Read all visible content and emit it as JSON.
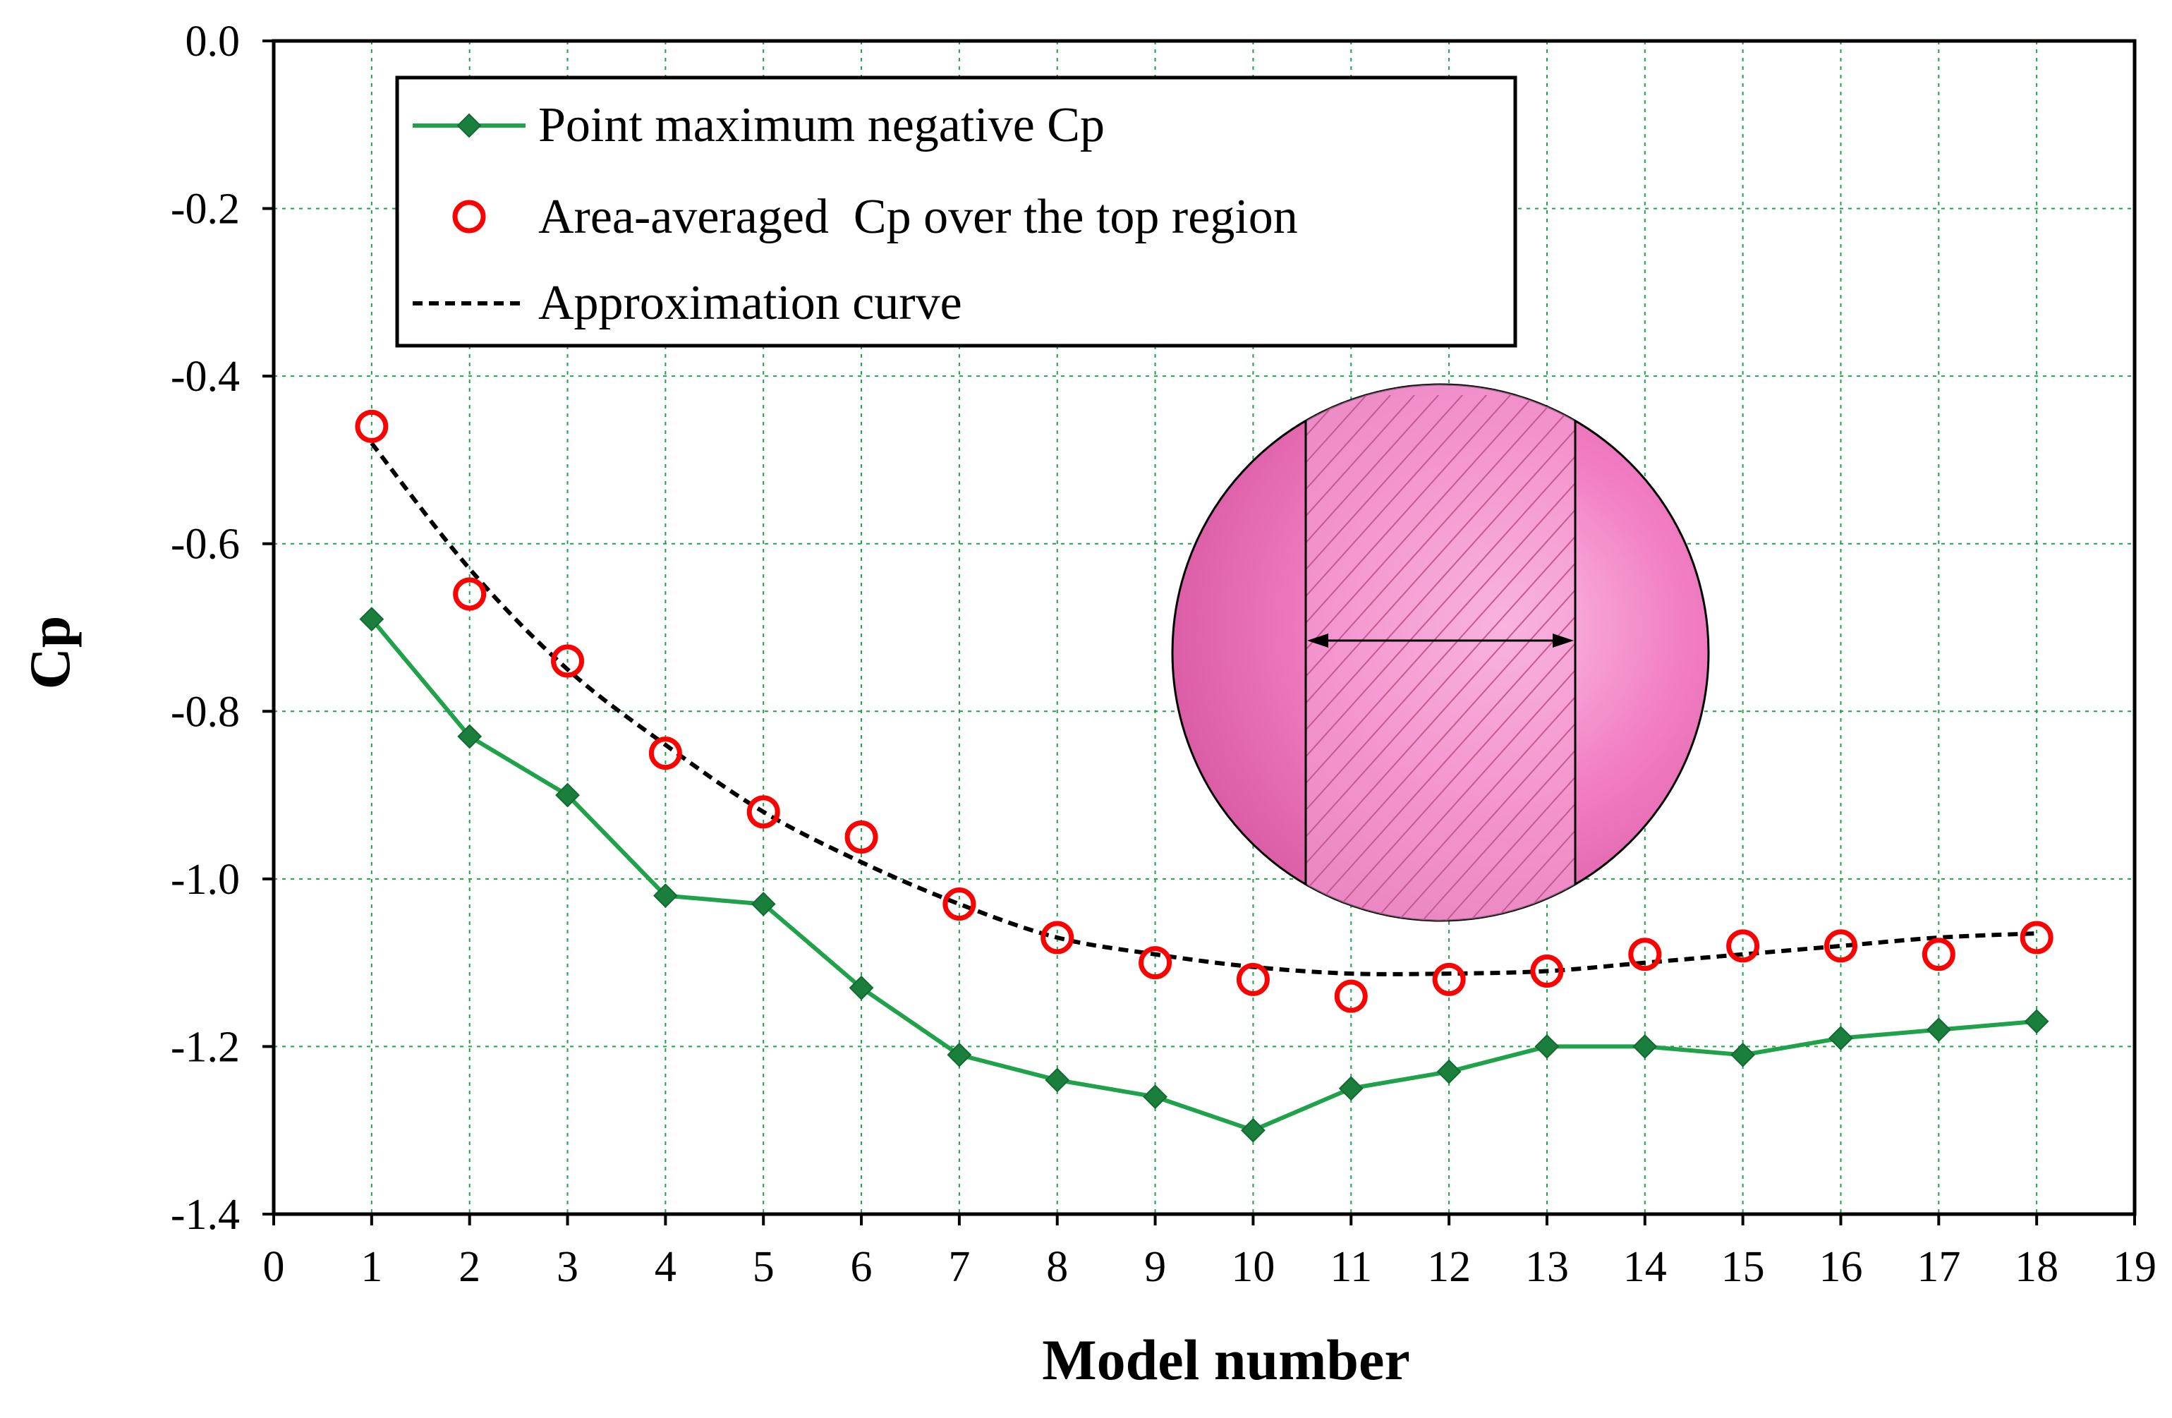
{
  "chart_data": {
    "type": "line",
    "xlabel": "Model number",
    "ylabel": "Cp",
    "xlim": [
      0,
      19
    ],
    "ylim": [
      -1.4,
      0.0
    ],
    "xticks": [
      "0",
      "1",
      "2",
      "3",
      "4",
      "5",
      "6",
      "7",
      "8",
      "9",
      "10",
      "11",
      "12",
      "13",
      "14",
      "15",
      "16",
      "17",
      "18",
      "19"
    ],
    "yticks": [
      "0.0",
      "-0.2",
      "-0.4",
      "-0.6",
      "-0.8",
      "-1.0",
      "-1.2",
      "-1.4"
    ],
    "grid": true,
    "legend_position": "top-left",
    "x": [
      1,
      2,
      3,
      4,
      5,
      6,
      7,
      8,
      9,
      10,
      11,
      12,
      13,
      14,
      15,
      16,
      17,
      18
    ],
    "series": [
      {
        "name": "Point maximum negative Cp",
        "marker": "diamond",
        "color": "#1fa24a",
        "values": [
          -0.69,
          -0.83,
          -0.9,
          -1.02,
          -1.03,
          -1.13,
          -1.21,
          -1.24,
          -1.26,
          -1.3,
          -1.25,
          -1.23,
          -1.2,
          -1.2,
          -1.21,
          -1.19,
          -1.18,
          -1.17
        ]
      },
      {
        "name": "Area-averaged  Cp over the top region",
        "marker": "open-circle",
        "color": "#ff0000",
        "values": [
          -0.46,
          -0.66,
          -0.74,
          -0.85,
          -0.92,
          -0.95,
          -1.03,
          -1.07,
          -1.1,
          -1.12,
          -1.14,
          -1.12,
          -1.11,
          -1.09,
          -1.08,
          -1.08,
          -1.09,
          -1.07
        ]
      },
      {
        "name": "Approximation curve",
        "line_style": "dashed",
        "color": "#000000",
        "values": [
          -0.48,
          -0.63,
          -0.75,
          -0.84,
          -0.92,
          -0.98,
          -1.03,
          -1.07,
          -1.09,
          -1.105,
          -1.113,
          -1.113,
          -1.11,
          -1.1,
          -1.09,
          -1.08,
          -1.07,
          -1.065
        ]
      }
    ]
  },
  "colors": {
    "grid": "#1fa24a",
    "inset_fill": "#f07dc0",
    "inset_highlight": "#f9b6de"
  }
}
